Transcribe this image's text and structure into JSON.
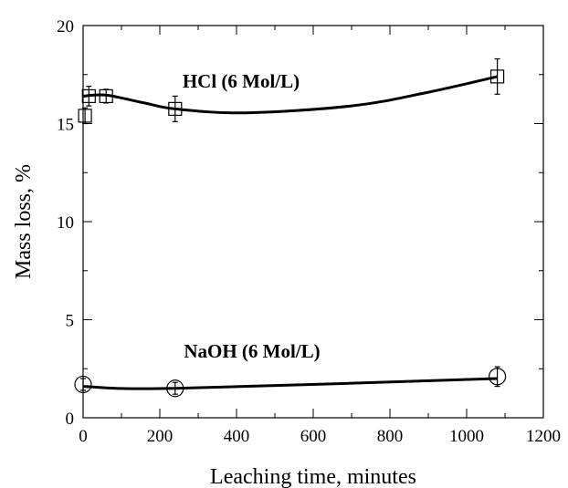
{
  "chart_data": {
    "type": "scatter",
    "xlabel": "Leaching time, minutes",
    "ylabel": "Mass loss, %",
    "xlim": [
      0,
      1200
    ],
    "ylim": [
      0,
      20
    ],
    "x_ticks": [
      0,
      200,
      400,
      600,
      800,
      1000,
      1200
    ],
    "y_ticks": [
      0,
      5,
      10,
      15,
      20
    ],
    "grid": false,
    "series": [
      {
        "name": "HCl (6 Mol/L)",
        "marker": "square",
        "points": [
          {
            "x": 5,
            "y": 15.4,
            "err": 0.4
          },
          {
            "x": 15,
            "y": 16.4,
            "err": 0.5
          },
          {
            "x": 60,
            "y": 16.4,
            "err": 0.35
          },
          {
            "x": 240,
            "y": 15.75,
            "err": 0.65
          },
          {
            "x": 1080,
            "y": 17.4,
            "err": 0.9
          }
        ],
        "curve": [
          [
            0,
            16.4
          ],
          [
            60,
            16.45
          ],
          [
            160,
            16.05
          ],
          [
            240,
            15.75
          ],
          [
            420,
            15.55
          ],
          [
            700,
            15.9
          ],
          [
            900,
            16.6
          ],
          [
            1080,
            17.4
          ]
        ]
      },
      {
        "name": "NaOH (6 Mol/L)",
        "marker": "circle",
        "points": [
          {
            "x": 0,
            "y": 1.7,
            "err": 0.3
          },
          {
            "x": 240,
            "y": 1.5,
            "err": 0.3
          },
          {
            "x": 1080,
            "y": 2.1,
            "err": 0.5
          }
        ],
        "curve": [
          [
            0,
            1.6
          ],
          [
            240,
            1.5
          ],
          [
            1080,
            2.0
          ]
        ]
      }
    ],
    "color": "#000000"
  }
}
